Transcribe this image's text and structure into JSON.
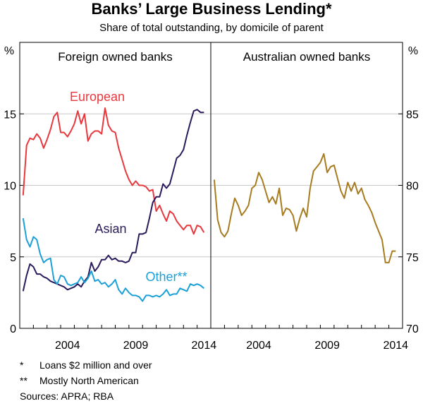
{
  "title": "Banks’ Large Business Lending*",
  "subtitle": "Share of total outstanding, by domicile of parent",
  "footnotes": [
    {
      "mark": "*",
      "text": "Loans $2 million and over"
    },
    {
      "mark": "**",
      "text": "Mostly North American"
    }
  ],
  "sources": "Sources:   APRA; RBA",
  "chart_data": {
    "type": "line",
    "left_axis": {
      "unit": "%",
      "ylim": [
        0,
        20
      ],
      "ticks": [
        0,
        5,
        10,
        15
      ]
    },
    "right_axis": {
      "unit": "%",
      "ylim": [
        70,
        90
      ],
      "ticks": [
        70,
        75,
        80,
        85
      ]
    },
    "x_ticks": [
      2004,
      2009,
      2014
    ],
    "panels": [
      {
        "title": "Foreign owned banks",
        "axis": "left",
        "series": [
          {
            "name": "European",
            "color": "#e8383d",
            "x": [
              2001.25,
              2001.5,
              2001.75,
              2002,
              2002.25,
              2002.5,
              2002.75,
              2003,
              2003.25,
              2003.5,
              2003.75,
              2004,
              2004.25,
              2004.5,
              2004.75,
              2005,
              2005.25,
              2005.5,
              2005.75,
              2006,
              2006.25,
              2006.5,
              2006.75,
              2007,
              2007.25,
              2007.5,
              2007.75,
              2008,
              2008.25,
              2008.5,
              2008.75,
              2009,
              2009.25,
              2009.5,
              2009.75,
              2010,
              2010.25,
              2010.5,
              2010.75,
              2011,
              2011.25,
              2011.5,
              2011.75,
              2012,
              2012.25,
              2012.5,
              2012.75,
              2013,
              2013.25,
              2013.5,
              2013.75,
              2014,
              2014.25,
              2014.5
            ],
            "y": [
              9.3,
              12.8,
              13.3,
              13.2,
              13.6,
              13.3,
              12.6,
              13.2,
              13.9,
              14.8,
              15.1,
              13.7,
              13.7,
              13.4,
              13.8,
              14.3,
              15.2,
              14.3,
              15.0,
              13.1,
              13.6,
              13.8,
              13.8,
              13.6,
              15.4,
              14.2,
              13.8,
              13.7,
              12.6,
              11.8,
              11.0,
              10.4,
              10.0,
              10.3,
              10.0,
              10.0,
              9.9,
              9.6,
              9.7,
              8.2,
              8.6,
              8.0,
              7.5,
              8.2,
              8.0,
              7.5,
              7.2,
              6.9,
              7.2,
              7.2,
              6.6,
              7.2,
              7.1,
              6.7
            ]
          },
          {
            "name": "Asian",
            "color": "#2b1b5c",
            "x": [
              2001.25,
              2001.5,
              2001.75,
              2002,
              2002.25,
              2002.5,
              2002.75,
              2003,
              2003.25,
              2003.5,
              2003.75,
              2004,
              2004.25,
              2004.5,
              2004.75,
              2005,
              2005.25,
              2005.5,
              2005.75,
              2006,
              2006.25,
              2006.5,
              2006.75,
              2007,
              2007.25,
              2007.5,
              2007.75,
              2008,
              2008.25,
              2008.5,
              2008.75,
              2009,
              2009.25,
              2009.5,
              2009.75,
              2010,
              2010.25,
              2010.5,
              2010.75,
              2011,
              2011.25,
              2011.5,
              2011.75,
              2012,
              2012.25,
              2012.5,
              2012.75,
              2013,
              2013.25,
              2013.5,
              2013.75,
              2014,
              2014.25,
              2014.5
            ],
            "y": [
              2.6,
              3.7,
              4.5,
              4.3,
              3.8,
              3.8,
              3.6,
              3.5,
              3.3,
              3.2,
              3.1,
              3.0,
              2.9,
              2.7,
              2.8,
              2.9,
              3.1,
              2.9,
              3.3,
              3.6,
              4.6,
              4.0,
              4.3,
              4.8,
              4.8,
              5.1,
              4.8,
              4.9,
              4.7,
              4.7,
              4.6,
              4.7,
              5.3,
              5.3,
              6.6,
              6.6,
              6.7,
              7.7,
              8.8,
              9.2,
              9.2,
              10.1,
              9.8,
              10.1,
              11.0,
              11.9,
              12.1,
              12.5,
              13.5,
              14.4,
              15.2,
              15.3,
              15.1,
              15.1
            ]
          },
          {
            "name": "Other**",
            "color": "#1ba0d8",
            "x": [
              2001.25,
              2001.5,
              2001.75,
              2002,
              2002.25,
              2002.5,
              2002.75,
              2003,
              2003.25,
              2003.5,
              2003.75,
              2004,
              2004.25,
              2004.5,
              2004.75,
              2005,
              2005.25,
              2005.5,
              2005.75,
              2006,
              2006.25,
              2006.5,
              2006.75,
              2007,
              2007.25,
              2007.5,
              2007.75,
              2008,
              2008.25,
              2008.5,
              2008.75,
              2009,
              2009.25,
              2009.5,
              2009.75,
              2010,
              2010.25,
              2010.5,
              2010.75,
              2011,
              2011.25,
              2011.5,
              2011.75,
              2012,
              2012.25,
              2012.5,
              2012.75,
              2013,
              2013.25,
              2013.5,
              2013.75,
              2014,
              2014.25,
              2014.5
            ],
            "y": [
              7.7,
              6.2,
              5.7,
              6.4,
              6.2,
              5.2,
              4.6,
              4.8,
              4.9,
              3.4,
              3.1,
              3.7,
              3.6,
              3.1,
              3.0,
              3.1,
              3.2,
              3.6,
              3.2,
              3.5,
              4.0,
              3.3,
              3.4,
              3.1,
              3.2,
              2.9,
              3.1,
              3.4,
              2.7,
              2.4,
              2.8,
              2.5,
              2.3,
              2.3,
              2.2,
              1.9,
              2.3,
              2.3,
              2.2,
              2.3,
              2.2,
              2.4,
              2.7,
              2.3,
              2.4,
              2.4,
              2.8,
              2.7,
              2.6,
              3.1,
              3.0,
              3.1,
              3.0,
              2.8
            ]
          }
        ],
        "labels": [
          {
            "text": "European",
            "series": "European"
          },
          {
            "text": "Asian",
            "series": "Asian"
          },
          {
            "text": "Other**",
            "series": "Other**"
          }
        ]
      },
      {
        "title": "Australian owned banks",
        "axis": "right",
        "series": [
          {
            "name": "Australian owned banks",
            "color": "#a67c1f",
            "x": [
              2001.25,
              2001.5,
              2001.75,
              2002,
              2002.25,
              2002.5,
              2002.75,
              2003,
              2003.25,
              2003.5,
              2003.75,
              2004,
              2004.25,
              2004.5,
              2004.75,
              2005,
              2005.25,
              2005.5,
              2005.75,
              2006,
              2006.25,
              2006.5,
              2006.75,
              2007,
              2007.25,
              2007.5,
              2007.75,
              2008,
              2008.25,
              2008.5,
              2008.75,
              2009,
              2009.25,
              2009.5,
              2009.75,
              2010,
              2010.25,
              2010.5,
              2010.75,
              2011,
              2011.25,
              2011.5,
              2011.75,
              2012,
              2012.25,
              2012.5,
              2012.75,
              2013,
              2013.25,
              2013.5,
              2013.75,
              2014,
              2014.25,
              2014.5
            ],
            "y": [
              80.4,
              77.6,
              76.7,
              76.4,
              76.8,
              78.0,
              79.1,
              78.6,
              77.9,
              78.2,
              78.6,
              79.8,
              80.0,
              80.9,
              80.4,
              79.6,
              78.8,
              79.2,
              78.7,
              79.8,
              77.9,
              78.4,
              78.3,
              77.9,
              76.8,
              77.7,
              78.4,
              77.8,
              79.8,
              81.0,
              81.3,
              81.6,
              82.2,
              80.9,
              81.3,
              81.4,
              80.5,
              79.6,
              79.1,
              80.2,
              79.6,
              80.2,
              79.4,
              79.8,
              79.0,
              78.6,
              78.1,
              77.4,
              76.8,
              76.2,
              74.6,
              74.6,
              75.4,
              75.4
            ]
          }
        ]
      }
    ]
  }
}
